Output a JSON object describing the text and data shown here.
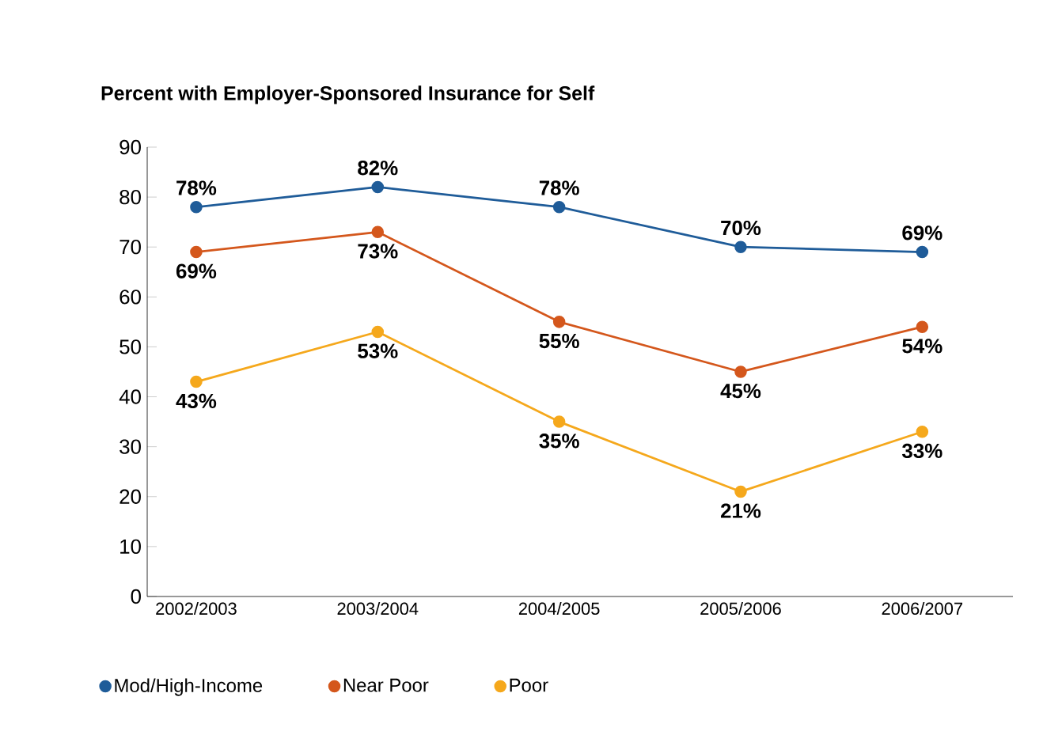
{
  "chart_data": {
    "type": "line",
    "title": "Percent with Employer-Sponsored Insurance for Self",
    "categories": [
      "2002/2003",
      "2003/2004",
      "2004/2005",
      "2005/2006",
      "2006/2007"
    ],
    "series": [
      {
        "name": "Mod/High-Income",
        "color": "#1f5c99",
        "values": [
          78,
          82,
          78,
          70,
          69
        ],
        "value_labels": [
          "78%",
          "82%",
          "78%",
          "70%",
          "69%"
        ]
      },
      {
        "name": "Near Poor",
        "color": "#d4571c",
        "values": [
          69,
          73,
          55,
          45,
          54
        ],
        "value_labels": [
          "69%",
          "73%",
          "55%",
          "45%",
          "54%"
        ]
      },
      {
        "name": "Poor",
        "color": "#f5a81c",
        "values": [
          43,
          53,
          35,
          21,
          33
        ],
        "value_labels": [
          "43%",
          "53%",
          "35%",
          "21%",
          "33%"
        ]
      }
    ],
    "ylim": [
      0,
      90
    ],
    "yticks": [
      0,
      10,
      20,
      30,
      40,
      50,
      60,
      70,
      80,
      90
    ],
    "grid": false,
    "legend": "bottom",
    "marker": "circle",
    "line_style": "solid"
  }
}
